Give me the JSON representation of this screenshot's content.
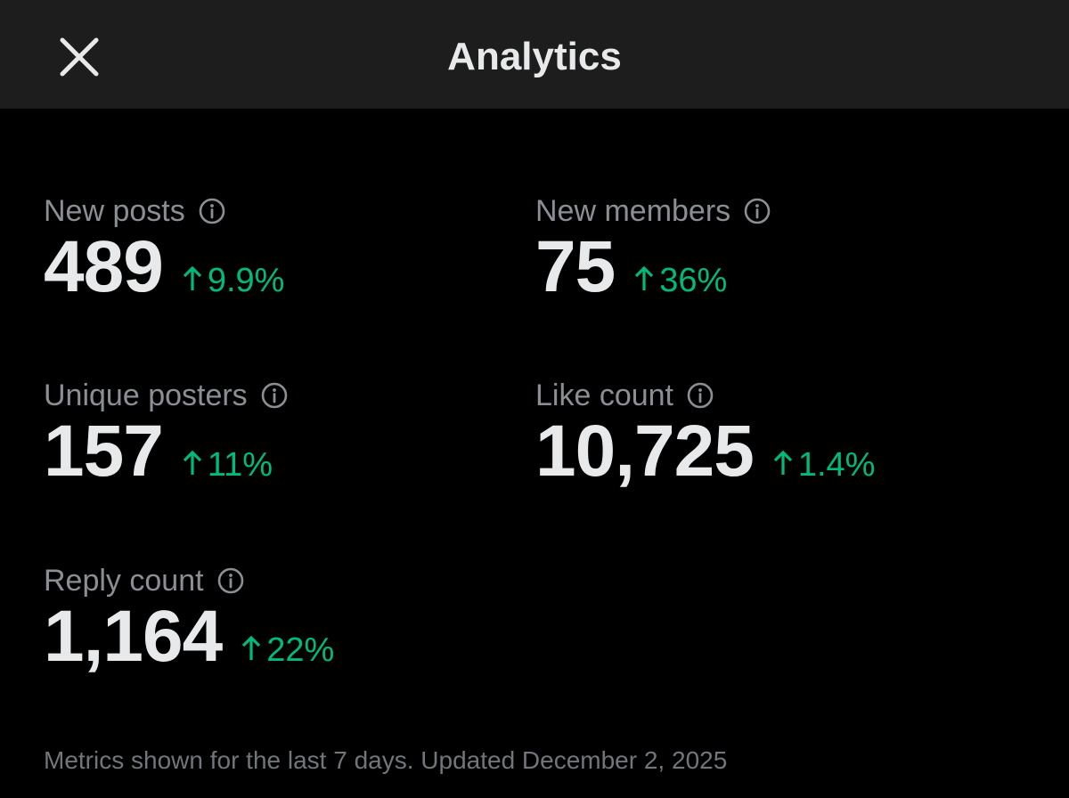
{
  "header": {
    "title": "Analytics",
    "close_icon": "close-icon"
  },
  "metrics": [
    {
      "label": "New posts",
      "value": "489",
      "change": "9.9%",
      "direction": "up"
    },
    {
      "label": "New members",
      "value": "75",
      "change": "36%",
      "direction": "up"
    },
    {
      "label": "Unique posters",
      "value": "157",
      "change": "11%",
      "direction": "up"
    },
    {
      "label": "Like count",
      "value": "10,725",
      "change": "1.4%",
      "direction": "up"
    },
    {
      "label": "Reply count",
      "value": "1,164",
      "change": "22%",
      "direction": "up"
    }
  ],
  "footer": {
    "note": "Metrics shown for the last 7 days. Updated December 2, 2025"
  },
  "colors": {
    "header_bg": "#1d1d1d",
    "page_bg": "#000000",
    "label": "#8b8f94",
    "value": "#e7e9ea",
    "positive": "#00ba7c"
  }
}
